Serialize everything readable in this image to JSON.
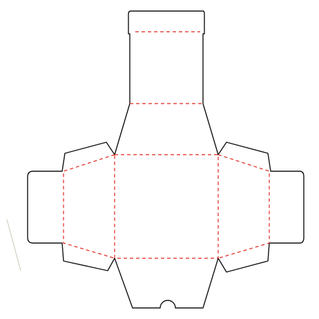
{
  "diagram": {
    "type": "box-dieline",
    "colors": {
      "background": "#ffffff",
      "cut_line": "#111111",
      "fold_line": "#e0241b",
      "edge_mark": "#c9c9b8"
    },
    "line_styles": {
      "cut": "solid",
      "fold": "dashed"
    },
    "panels": [
      "top-tuck-flap",
      "back-panel",
      "left-side-panel",
      "left-glue-flap",
      "base-panel",
      "right-side-panel",
      "right-glue-flap",
      "front-panel"
    ],
    "features": [
      "thumb-notch"
    ]
  }
}
